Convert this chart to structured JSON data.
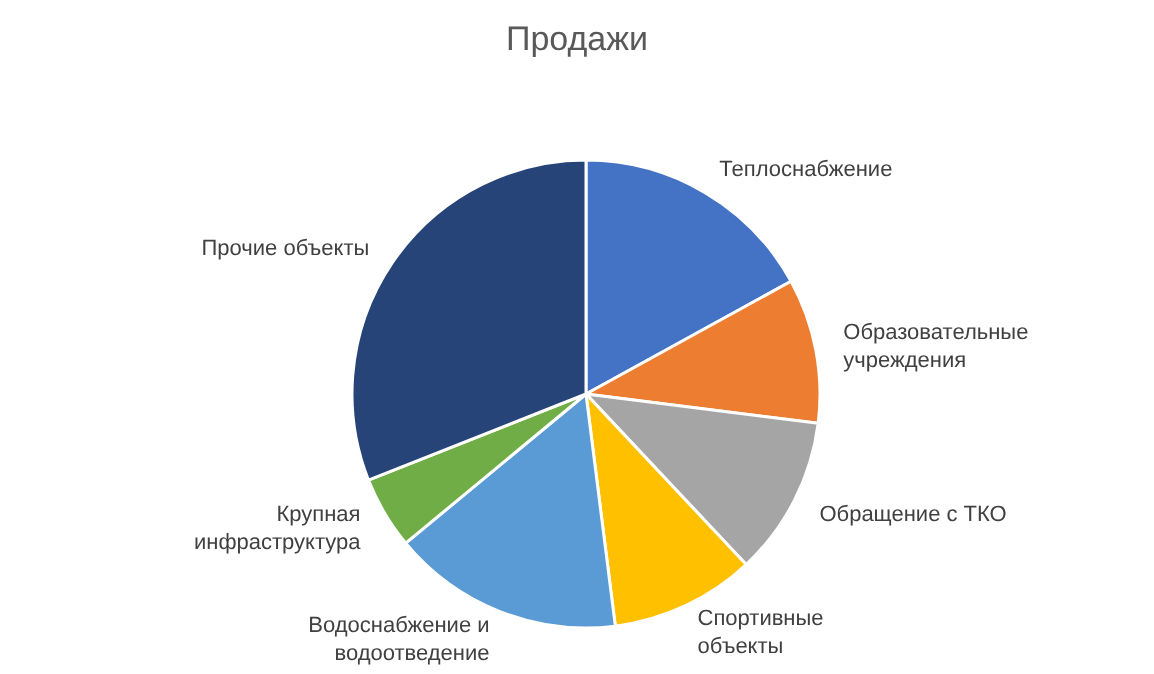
{
  "chart_data": {
    "type": "pie",
    "title": "Продажи",
    "categories": [
      "Теплоснабжение",
      "Образовательные учреждения",
      "Обращение с ТКО",
      "Спортивные объекты",
      "Водоснабжение и водоотведение",
      "Крупная инфраструктура",
      "Прочие объекты"
    ],
    "values": [
      17,
      10,
      11,
      10,
      16,
      5,
      31
    ],
    "colors": [
      "#4472c4",
      "#ed7d31",
      "#a5a5a5",
      "#ffc000",
      "#5b9bd5",
      "#70ad47",
      "#264478"
    ],
    "legend": false
  }
}
